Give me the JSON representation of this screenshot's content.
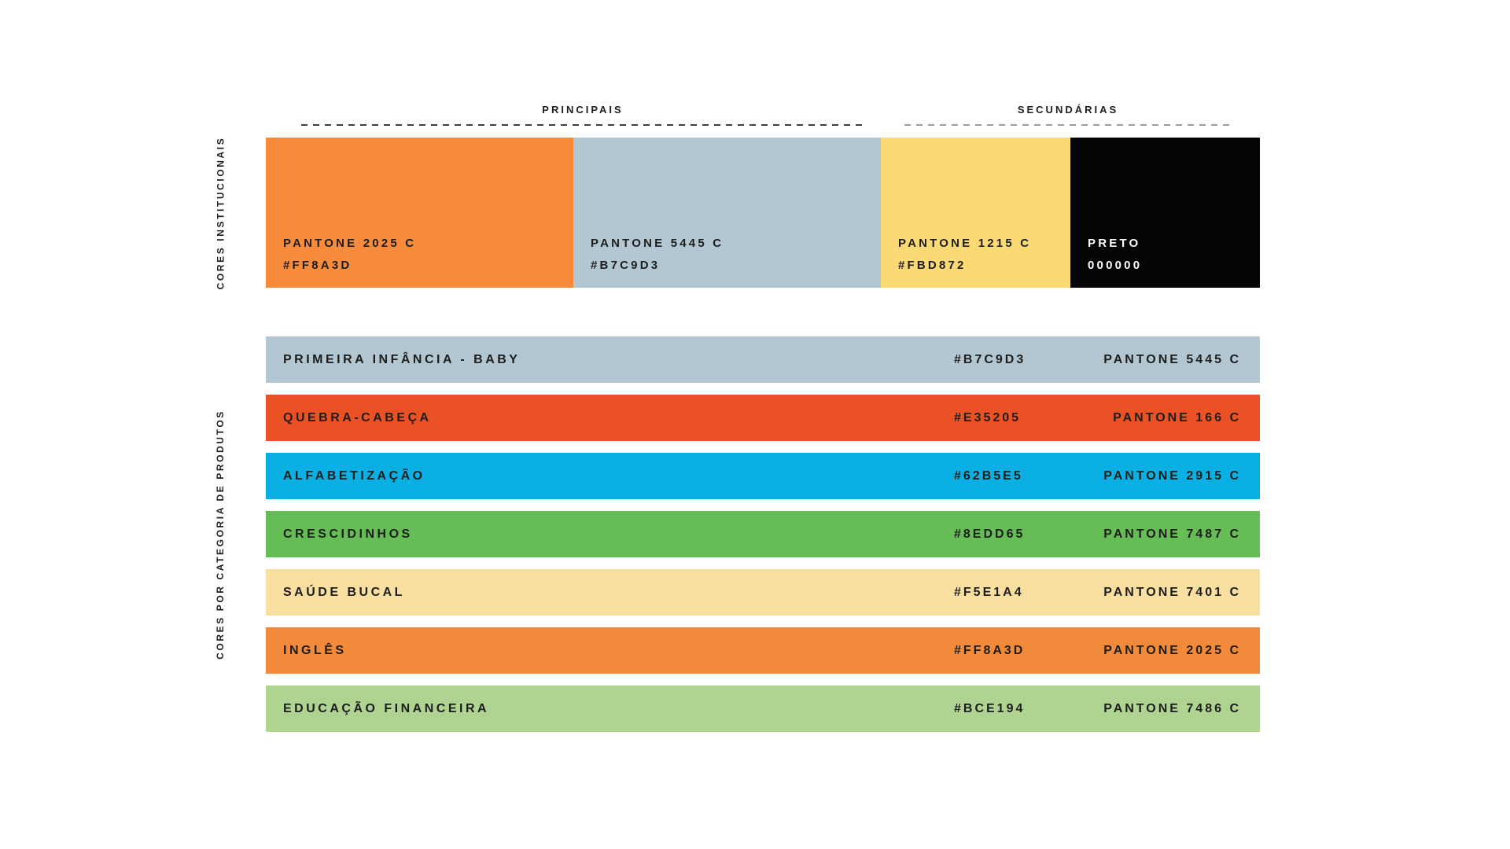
{
  "page": {
    "background": "#FFFFFF",
    "text_color": "#1D1D1B"
  },
  "institutional": {
    "section_label": "CORES INSTITUCIONAIS",
    "groups": {
      "principais": {
        "label": "PRINCIPAIS",
        "divider_color": "#3E3E3E"
      },
      "secundarias": {
        "label": "SECUNDÁRIAS",
        "divider_color": "#9C9C9C"
      }
    },
    "swatches": [
      {
        "name": "PANTONE 2025 C",
        "hex_label": "#FF8A3D",
        "fill": "#F98B3C",
        "text_color": "#1D1D1B",
        "group": "principais"
      },
      {
        "name": "PANTONE 5445 C",
        "hex_label": "#B7C9D3",
        "fill": "#B2C7D2",
        "text_color": "#1D1D1B",
        "group": "principais"
      },
      {
        "name": "PANTONE 1215 C",
        "hex_label": "#FBD872",
        "fill": "#FBD975",
        "text_color": "#1D1D1B",
        "group": "secundarias"
      },
      {
        "name": "PRETO",
        "hex_label": "000000",
        "fill": "#050505",
        "text_color": "#FFFFFF",
        "group": "secundarias"
      }
    ]
  },
  "categories": {
    "section_label": "CORES POR CATEGORIA DE PRODUTOS",
    "rows": [
      {
        "name": "PRIMEIRA INFÂNCIA - BABY",
        "hex": "#B7C9D3",
        "pantone": "PANTONE 5445 C",
        "fill": "#B2C7D2",
        "text_color": "#1D1D1B"
      },
      {
        "name": "QUEBRA-CABEÇA",
        "hex": "#E35205",
        "pantone": "PANTONE 166 C",
        "fill": "#EA5226",
        "text_color": "#1D1D1B"
      },
      {
        "name": "ALFABETIZAÇÃO",
        "hex": "#62B5E5",
        "pantone": "PANTONE 2915 C",
        "fill": "#0AB0E3",
        "text_color": "#1D1D1B"
      },
      {
        "name": "CRESCIDINHOS",
        "hex": "#8EDD65",
        "pantone": "PANTONE 7487 C",
        "fill": "#66BC55",
        "text_color": "#1D1D1B"
      },
      {
        "name": "SAÚDE BUCAL",
        "hex": "#F5E1A4",
        "pantone": "PANTONE 7401 C",
        "fill": "#F9DFA0",
        "text_color": "#1D1D1B"
      },
      {
        "name": "INGLÊS",
        "hex": "#FF8A3D",
        "pantone": "PANTONE 2025 C",
        "fill": "#F18B3B",
        "text_color": "#1D1D1B"
      },
      {
        "name": "EDUCAÇÃO FINANCEIRA",
        "hex": "#BCE194",
        "pantone": "PANTONE 7486 C",
        "fill": "#AFD492",
        "text_color": "#1D1D1B"
      }
    ]
  }
}
